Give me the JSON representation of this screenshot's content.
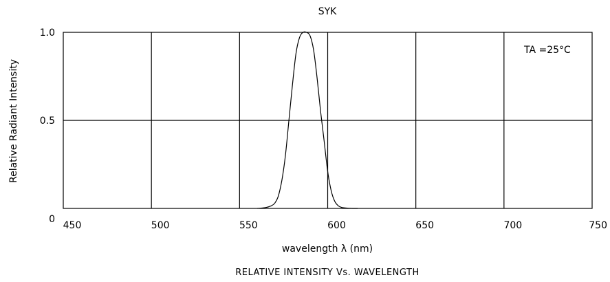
{
  "chart_data": {
    "type": "line",
    "title": "SYK",
    "xlabel": "wavelength λ (nm)",
    "ylabel": "Relative Radiant Intensity",
    "caption": "RELATIVE INTENSITY Vs. WAVELENGTH",
    "annotation": "TA =25°C",
    "xlim": [
      450,
      750
    ],
    "ylim": [
      0,
      1.0
    ],
    "x_ticks": [
      450,
      500,
      550,
      600,
      650,
      700,
      750
    ],
    "y_ticks": [
      {
        "value": 0,
        "label": "0"
      },
      {
        "value": 0.5,
        "label": "0.5"
      },
      {
        "value": 1.0,
        "label": "1.0"
      }
    ],
    "grid": true,
    "legend": "none",
    "line_color": "#000000",
    "series": [
      {
        "x": [
          560,
          565,
          568,
          570,
          572,
          574,
          576,
          578,
          580,
          582,
          584,
          586,
          588,
          590,
          592,
          594,
          596,
          598,
          600,
          602,
          604,
          606,
          608,
          612,
          617
        ],
        "y": [
          0.0,
          0.005,
          0.015,
          0.03,
          0.07,
          0.16,
          0.3,
          0.5,
          0.7,
          0.88,
          0.97,
          1.0,
          1.0,
          0.98,
          0.9,
          0.74,
          0.55,
          0.38,
          0.21,
          0.1,
          0.04,
          0.015,
          0.005,
          0.001,
          0.0
        ]
      }
    ]
  }
}
